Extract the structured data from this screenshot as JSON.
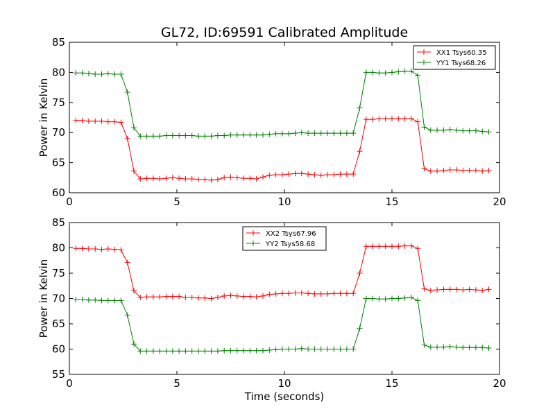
{
  "figure": {
    "title": "GL72, ID:69591 Calibrated Amplitude",
    "xlabel": "Time (seconds)"
  },
  "chart_data": [
    {
      "type": "line",
      "ylabel": "Power in Kelvin",
      "xlim": [
        0,
        20
      ],
      "ylim": [
        60,
        85
      ],
      "xticks": [
        0,
        5,
        10,
        15,
        20
      ],
      "yticks": [
        60,
        65,
        70,
        75,
        80,
        85
      ],
      "legend_position": "top-right",
      "x": [
        0.3,
        0.6,
        0.9,
        1.2,
        1.5,
        1.8,
        2.1,
        2.4,
        2.7,
        3.0,
        3.3,
        3.6,
        3.9,
        4.2,
        4.5,
        4.8,
        5.1,
        5.4,
        5.7,
        6.0,
        6.3,
        6.6,
        6.9,
        7.2,
        7.5,
        7.8,
        8.1,
        8.4,
        8.7,
        9.0,
        9.3,
        9.6,
        9.9,
        10.2,
        10.5,
        10.8,
        11.1,
        11.4,
        11.7,
        12.0,
        12.3,
        12.6,
        12.9,
        13.2,
        13.5,
        13.8,
        14.1,
        14.4,
        14.7,
        15.0,
        15.3,
        15.6,
        15.9,
        16.2,
        16.5,
        16.8,
        17.1,
        17.4,
        17.7,
        18.0,
        18.3,
        18.6,
        18.9,
        19.2,
        19.5
      ],
      "series": [
        {
          "name": "XX1 Tsys60.35",
          "color": "#ff0000",
          "values": [
            72.0,
            72.0,
            71.9,
            71.9,
            71.9,
            71.8,
            71.8,
            71.7,
            69.0,
            63.6,
            62.3,
            62.4,
            62.4,
            62.3,
            62.4,
            62.5,
            62.4,
            62.3,
            62.3,
            62.2,
            62.2,
            62.1,
            62.2,
            62.5,
            62.6,
            62.5,
            62.4,
            62.4,
            62.3,
            62.6,
            62.9,
            63.0,
            63.0,
            63.1,
            63.2,
            63.2,
            63.1,
            63.0,
            62.9,
            63.0,
            63.0,
            63.1,
            63.1,
            63.1,
            66.9,
            72.2,
            72.2,
            72.3,
            72.3,
            72.3,
            72.3,
            72.3,
            72.3,
            71.8,
            64.0,
            63.6,
            63.6,
            63.7,
            63.8,
            63.8,
            63.7,
            63.7,
            63.7,
            63.6,
            63.7
          ]
        },
        {
          "name": "YY1 Tsys68.26",
          "color": "#008000",
          "values": [
            79.9,
            79.9,
            79.8,
            79.7,
            79.7,
            79.8,
            79.7,
            79.7,
            76.7,
            70.8,
            69.4,
            69.4,
            69.4,
            69.4,
            69.5,
            69.5,
            69.5,
            69.5,
            69.5,
            69.4,
            69.4,
            69.4,
            69.5,
            69.5,
            69.6,
            69.6,
            69.6,
            69.6,
            69.6,
            69.6,
            69.7,
            69.8,
            69.8,
            69.8,
            69.9,
            70.0,
            69.9,
            69.9,
            69.9,
            69.9,
            69.9,
            69.9,
            69.9,
            69.9,
            74.1,
            80.0,
            80.0,
            79.9,
            79.9,
            80.0,
            80.1,
            80.2,
            80.2,
            79.5,
            70.9,
            70.4,
            70.4,
            70.4,
            70.5,
            70.4,
            70.3,
            70.3,
            70.3,
            70.2,
            70.1
          ]
        }
      ]
    },
    {
      "type": "line",
      "ylabel": "Power in Kelvin",
      "xlim": [
        0,
        20
      ],
      "ylim": [
        55,
        85
      ],
      "xticks": [
        0,
        5,
        10,
        15,
        20
      ],
      "yticks": [
        55,
        60,
        65,
        70,
        75,
        80,
        85
      ],
      "legend_position": "top-center",
      "x": [
        0.3,
        0.6,
        0.9,
        1.2,
        1.5,
        1.8,
        2.1,
        2.4,
        2.7,
        3.0,
        3.3,
        3.6,
        3.9,
        4.2,
        4.5,
        4.8,
        5.1,
        5.4,
        5.7,
        6.0,
        6.3,
        6.6,
        6.9,
        7.2,
        7.5,
        7.8,
        8.1,
        8.4,
        8.7,
        9.0,
        9.3,
        9.6,
        9.9,
        10.2,
        10.5,
        10.8,
        11.1,
        11.4,
        11.7,
        12.0,
        12.3,
        12.6,
        12.9,
        13.2,
        13.5,
        13.8,
        14.1,
        14.4,
        14.7,
        15.0,
        15.3,
        15.6,
        15.9,
        16.2,
        16.5,
        16.8,
        17.1,
        17.4,
        17.7,
        18.0,
        18.3,
        18.6,
        18.9,
        19.2,
        19.5
      ],
      "series": [
        {
          "name": "XX2 Tsys67.96",
          "color": "#ff0000",
          "values": [
            79.9,
            79.9,
            79.8,
            79.8,
            79.7,
            79.8,
            79.7,
            79.6,
            77.1,
            71.5,
            70.2,
            70.3,
            70.3,
            70.3,
            70.4,
            70.4,
            70.4,
            70.2,
            70.2,
            70.1,
            70.1,
            70.0,
            70.2,
            70.5,
            70.6,
            70.5,
            70.4,
            70.4,
            70.3,
            70.5,
            70.8,
            70.9,
            71.0,
            71.0,
            71.1,
            71.1,
            71.0,
            70.9,
            70.9,
            70.9,
            71.0,
            71.0,
            71.0,
            71.0,
            75.0,
            80.3,
            80.3,
            80.3,
            80.3,
            80.3,
            80.3,
            80.4,
            80.4,
            79.9,
            71.9,
            71.6,
            71.7,
            71.8,
            71.8,
            71.8,
            71.7,
            71.8,
            71.7,
            71.6,
            71.8
          ]
        },
        {
          "name": "YY2 Tsys58.68",
          "color": "#008000",
          "values": [
            69.8,
            69.8,
            69.7,
            69.7,
            69.6,
            69.6,
            69.6,
            69.6,
            66.7,
            61.0,
            59.6,
            59.6,
            59.6,
            59.6,
            59.6,
            59.6,
            59.6,
            59.6,
            59.6,
            59.6,
            59.6,
            59.6,
            59.6,
            59.7,
            59.7,
            59.7,
            59.7,
            59.7,
            59.7,
            59.7,
            59.8,
            59.9,
            60.0,
            60.0,
            60.0,
            60.1,
            60.0,
            60.0,
            60.0,
            60.0,
            60.0,
            60.0,
            60.0,
            60.0,
            64.1,
            70.0,
            70.0,
            69.9,
            69.9,
            70.0,
            70.0,
            70.1,
            70.2,
            69.6,
            60.8,
            60.4,
            60.4,
            60.4,
            60.5,
            60.4,
            60.3,
            60.3,
            60.3,
            60.3,
            60.2
          ]
        }
      ]
    }
  ]
}
